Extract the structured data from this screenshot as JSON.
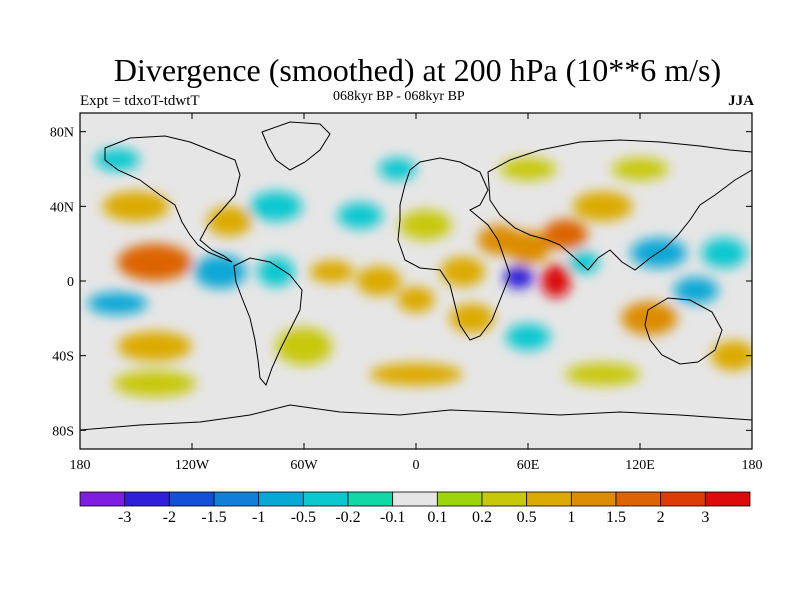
{
  "header": {
    "title": "Divergence (smoothed) at 200 hPa (10**6 m/s)",
    "experiment": "Expt = tdxoT-tdwtT",
    "period": "068kyr BP - 068kyr BP",
    "season": "JJA"
  },
  "map": {
    "projection": "cylindrical-equidistant",
    "lon_range": [
      -180,
      180
    ],
    "lat_range": [
      -90,
      90
    ],
    "background_color": "#e6e6e6",
    "coastline_color": "#000000",
    "lat_ticks": [
      "80N",
      "40N",
      "0",
      "40S",
      "80S"
    ],
    "lon_ticks": [
      "180",
      "120W",
      "60W",
      "0",
      "60E",
      "120E",
      "180"
    ]
  },
  "colorbar": {
    "labels": [
      "-3",
      "-2",
      "-1.5",
      "-1",
      "-0.5",
      "-0.2",
      "-0.1",
      "0.1",
      "0.2",
      "0.5",
      "1",
      "1.5",
      "2",
      "3"
    ],
    "colors": [
      "#7e1fe0",
      "#2f1fd8",
      "#1450d6",
      "#0f7fd8",
      "#07a8d6",
      "#0bc8d0",
      "#12d8a8",
      "#e6e6e6",
      "#9ed40b",
      "#c8c80a",
      "#dcaa05",
      "#dc8c05",
      "#dc6405",
      "#dc3c05",
      "#dc0a0a"
    ]
  },
  "chart_data": {
    "type": "heatmap",
    "variable": "Divergence (smoothed) at 200 hPa",
    "units": "10**6 m/s",
    "season": "JJA",
    "levels": [
      -3,
      -2,
      -1.5,
      -1,
      -0.5,
      -0.2,
      -0.1,
      0.1,
      0.2,
      0.5,
      1,
      1.5,
      2,
      3
    ],
    "features": [
      {
        "lon": -140,
        "lat": 10,
        "value": 1.5,
        "rx": 20,
        "ry": 10
      },
      {
        "lon": -150,
        "lat": 40,
        "value": 0.6,
        "rx": 18,
        "ry": 8
      },
      {
        "lon": -105,
        "lat": 5,
        "value": -1.0,
        "rx": 14,
        "ry": 9
      },
      {
        "lon": -160,
        "lat": -12,
        "value": -0.7,
        "rx": 16,
        "ry": 6
      },
      {
        "lon": -140,
        "lat": -35,
        "value": 0.5,
        "rx": 20,
        "ry": 8
      },
      {
        "lon": -140,
        "lat": -55,
        "value": 0.3,
        "rx": 22,
        "ry": 7
      },
      {
        "lon": -100,
        "lat": 32,
        "value": 0.8,
        "rx": 12,
        "ry": 8
      },
      {
        "lon": -75,
        "lat": 40,
        "value": -0.5,
        "rx": 14,
        "ry": 8
      },
      {
        "lon": -75,
        "lat": 5,
        "value": -0.4,
        "rx": 10,
        "ry": 8
      },
      {
        "lon": -60,
        "lat": -35,
        "value": 0.4,
        "rx": 15,
        "ry": 10
      },
      {
        "lon": -45,
        "lat": 5,
        "value": 0.7,
        "rx": 12,
        "ry": 6
      },
      {
        "lon": -30,
        "lat": 35,
        "value": -0.4,
        "rx": 12,
        "ry": 7
      },
      {
        "lon": -20,
        "lat": 0,
        "value": 0.8,
        "rx": 12,
        "ry": 8
      },
      {
        "lon": 0,
        "lat": -10,
        "value": 0.5,
        "rx": 10,
        "ry": 7
      },
      {
        "lon": 5,
        "lat": 30,
        "value": 0.3,
        "rx": 14,
        "ry": 8
      },
      {
        "lon": 25,
        "lat": 5,
        "value": 0.8,
        "rx": 12,
        "ry": 8
      },
      {
        "lon": 45,
        "lat": 22,
        "value": 1.0,
        "rx": 12,
        "ry": 8
      },
      {
        "lon": 55,
        "lat": 2,
        "value": -2.5,
        "rx": 8,
        "ry": 6
      },
      {
        "lon": 60,
        "lat": 18,
        "value": 1.0,
        "rx": 12,
        "ry": 9
      },
      {
        "lon": 75,
        "lat": 0,
        "value": 3.0,
        "rx": 8,
        "ry": 9
      },
      {
        "lon": 80,
        "lat": 25,
        "value": 1.5,
        "rx": 12,
        "ry": 8
      },
      {
        "lon": 90,
        "lat": 10,
        "value": -0.5,
        "rx": 8,
        "ry": 6
      },
      {
        "lon": 30,
        "lat": -20,
        "value": 0.6,
        "rx": 12,
        "ry": 8
      },
      {
        "lon": 60,
        "lat": -30,
        "value": -0.4,
        "rx": 12,
        "ry": 7
      },
      {
        "lon": 100,
        "lat": 40,
        "value": 0.5,
        "rx": 16,
        "ry": 8
      },
      {
        "lon": 120,
        "lat": 60,
        "value": 0.3,
        "rx": 15,
        "ry": 6
      },
      {
        "lon": 130,
        "lat": 15,
        "value": -1.0,
        "rx": 15,
        "ry": 8
      },
      {
        "lon": 125,
        "lat": -20,
        "value": 1.2,
        "rx": 15,
        "ry": 9
      },
      {
        "lon": 150,
        "lat": -5,
        "value": -0.8,
        "rx": 12,
        "ry": 7
      },
      {
        "lon": 165,
        "lat": 15,
        "value": -0.5,
        "rx": 12,
        "ry": 8
      },
      {
        "lon": 170,
        "lat": -40,
        "value": 0.6,
        "rx": 12,
        "ry": 8
      },
      {
        "lon": 100,
        "lat": -50,
        "value": 0.4,
        "rx": 20,
        "ry": 6
      },
      {
        "lon": 0,
        "lat": -50,
        "value": 0.5,
        "rx": 25,
        "ry": 6
      },
      {
        "lon": -10,
        "lat": 60,
        "value": -0.3,
        "rx": 10,
        "ry": 6
      },
      {
        "lon": 60,
        "lat": 60,
        "value": 0.4,
        "rx": 15,
        "ry": 6
      },
      {
        "lon": -160,
        "lat": 65,
        "value": -0.3,
        "rx": 12,
        "ry": 6
      }
    ]
  }
}
